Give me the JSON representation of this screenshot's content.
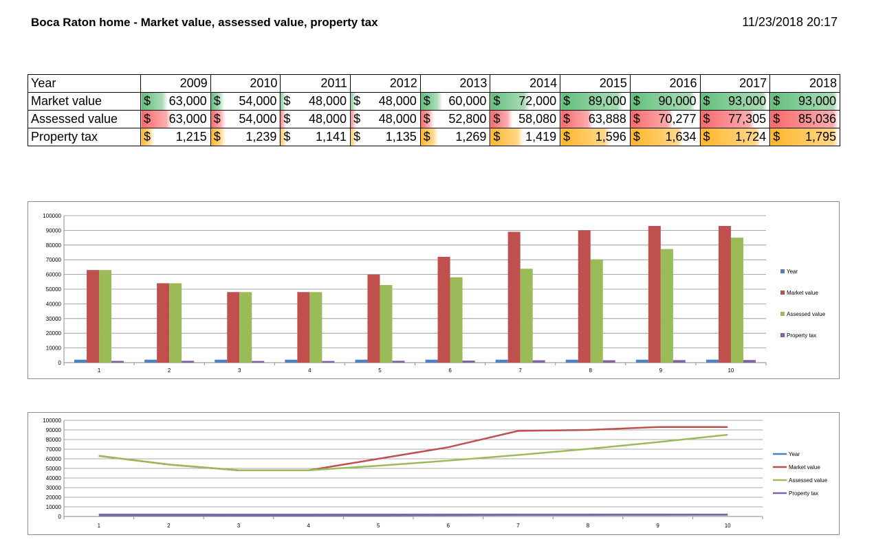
{
  "header": {
    "title": "Boca Raton home - Market value, assessed value, property tax",
    "timestamp": "11/23/2018 20:17"
  },
  "table": {
    "year_label": "Year",
    "years": [
      "2009",
      "2010",
      "2011",
      "2012",
      "2013",
      "2014",
      "2015",
      "2016",
      "2017",
      "2018"
    ],
    "currency_symbol": "$",
    "rows": [
      {
        "label": "Market value",
        "color": "#63be7b",
        "values": [
          "63,000",
          "54,000",
          "48,000",
          "48,000",
          "60,000",
          "72,000",
          "89,000",
          "90,000",
          "93,000",
          "93,000"
        ],
        "intensity": [
          0.33,
          0.13,
          0.0,
          0.0,
          0.27,
          0.53,
          0.91,
          0.96,
          1.0,
          1.0
        ]
      },
      {
        "label": "Assessed value",
        "color": "#f8696b",
        "values": [
          "63,000",
          "54,000",
          "48,000",
          "48,000",
          "52,800",
          "58,080",
          "63,888",
          "70,277",
          "77,305",
          "85,036"
        ],
        "intensity": [
          0.4,
          0.16,
          0.0,
          0.0,
          0.13,
          0.27,
          0.43,
          0.6,
          0.79,
          1.0
        ]
      },
      {
        "label": "Property tax",
        "color": "#ffb628",
        "values": [
          "1,215",
          "1,239",
          "1,141",
          "1,135",
          "1,269",
          "1,419",
          "1,596",
          "1,634",
          "1,724",
          "1,795"
        ],
        "intensity": [
          0.12,
          0.16,
          0.01,
          0.0,
          0.2,
          0.43,
          0.7,
          0.75,
          0.89,
          1.0
        ]
      }
    ]
  },
  "chart_data": [
    {
      "type": "bar",
      "categories": [
        "1",
        "2",
        "3",
        "4",
        "5",
        "6",
        "7",
        "8",
        "9",
        "10"
      ],
      "ylim": [
        0,
        100000
      ],
      "yticks": [
        0,
        10000,
        20000,
        30000,
        40000,
        50000,
        60000,
        70000,
        80000,
        90000,
        100000
      ],
      "ytick_labels": [
        "0",
        "10000",
        "20000",
        "30000",
        "40000",
        "50000",
        "60000",
        "70000",
        "80000",
        "90000",
        "100000"
      ],
      "grid": true,
      "legend": "right",
      "series": [
        {
          "name": "Year",
          "color": "#4f81bd",
          "values": [
            2009,
            2010,
            2011,
            2012,
            2013,
            2014,
            2015,
            2016,
            2017,
            2018
          ]
        },
        {
          "name": "Market value",
          "color": "#c0504d",
          "values": [
            63000,
            54000,
            48000,
            48000,
            60000,
            72000,
            89000,
            90000,
            93000,
            93000
          ]
        },
        {
          "name": "Assessed value",
          "color": "#9bbb59",
          "values": [
            63000,
            54000,
            48000,
            48000,
            52800,
            58080,
            63888,
            70277,
            77305,
            85036
          ]
        },
        {
          "name": "Property tax",
          "color": "#8064a2",
          "values": [
            1215,
            1239,
            1141,
            1135,
            1269,
            1419,
            1596,
            1634,
            1724,
            1795
          ]
        }
      ]
    },
    {
      "type": "line",
      "categories": [
        "1",
        "2",
        "3",
        "4",
        "5",
        "6",
        "7",
        "8",
        "9",
        "10"
      ],
      "ylim": [
        0,
        100000
      ],
      "yticks": [
        0,
        10000,
        20000,
        30000,
        40000,
        50000,
        60000,
        70000,
        80000,
        90000,
        100000
      ],
      "ytick_labels": [
        "0",
        "10000",
        "20000",
        "30000",
        "40000",
        "50000",
        "60000",
        "70000",
        "80000",
        "90000",
        "100000"
      ],
      "grid": true,
      "legend": "right",
      "series": [
        {
          "name": "Year",
          "color": "#4f81bd",
          "values": [
            2009,
            2010,
            2011,
            2012,
            2013,
            2014,
            2015,
            2016,
            2017,
            2018
          ]
        },
        {
          "name": "Market value",
          "color": "#c0504d",
          "values": [
            63000,
            54000,
            48000,
            48000,
            60000,
            72000,
            89000,
            90000,
            93000,
            93000
          ]
        },
        {
          "name": "Assessed value",
          "color": "#9bbb59",
          "values": [
            63000,
            54000,
            48000,
            48000,
            52800,
            58080,
            63888,
            70277,
            77305,
            85036
          ]
        },
        {
          "name": "Property tax",
          "color": "#8064a2",
          "values": [
            1215,
            1239,
            1141,
            1135,
            1269,
            1419,
            1596,
            1634,
            1724,
            1795
          ]
        }
      ]
    }
  ]
}
